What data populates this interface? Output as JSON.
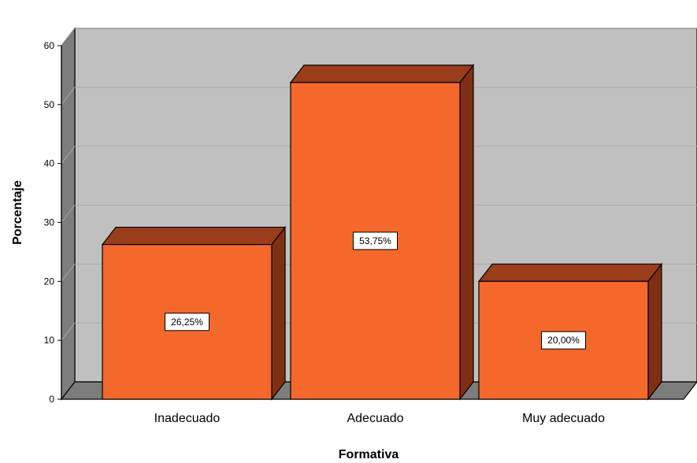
{
  "chart_data": {
    "type": "bar",
    "categories": [
      "Inadecuado",
      "Adecuado",
      "Muy adecuado"
    ],
    "values": [
      26.25,
      53.75,
      20.0
    ],
    "data_labels": [
      "26,25%",
      "53,75%",
      "20,00%"
    ],
    "xlabel": "Formativa",
    "ylabel": "Porcentaje",
    "ylim": [
      0,
      60
    ],
    "yticks": [
      0,
      10,
      20,
      30,
      40,
      50,
      60
    ],
    "grid": true,
    "style": "3d",
    "colors": {
      "bar_front": "#f4682c",
      "bar_top": "#9a3d1a",
      "bar_side": "#7f3012",
      "plot_back": "#c0c0c0",
      "plot_side": "#7d7d7d",
      "plot_floor": "#7d7d7d",
      "gridline": "#a8a8a8"
    }
  }
}
